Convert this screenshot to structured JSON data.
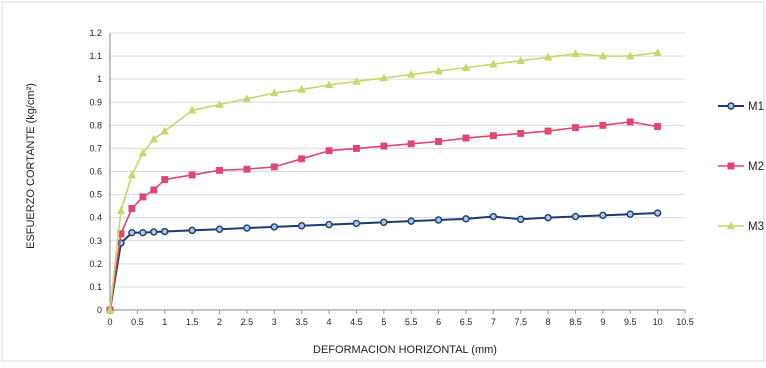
{
  "chart_data": {
    "type": "line",
    "title": "",
    "xlabel": "DEFORMACION HORIZONTAL (mm)",
    "ylabel": "ESFUERZO CORTANTE (kg/cm²)",
    "xlim": [
      0,
      10.5
    ],
    "ylim": [
      0,
      1.2
    ],
    "grid": true,
    "legend_position": "right",
    "x_ticks": [
      "0",
      "0.5",
      "1",
      "1.5",
      "2",
      "2.5",
      "3",
      "3.5",
      "4",
      "4.5",
      "5",
      "5.5",
      "6",
      "6.5",
      "7",
      "7.5",
      "8",
      "8.5",
      "9",
      "9.5",
      "10",
      "10.5"
    ],
    "y_ticks": [
      "0",
      "0.1",
      "0.2",
      "0.3",
      "0.4",
      "0.5",
      "0.6",
      "0.7",
      "0.8",
      "0.9",
      "1",
      "1.1",
      "1.2"
    ],
    "series": [
      {
        "name": "M1",
        "color": "#1f3a6e",
        "fill": "#a9c9e6",
        "marker": "circle",
        "x": [
          0,
          0.2,
          0.4,
          0.6,
          0.8,
          1.0,
          1.5,
          2.0,
          2.5,
          3.0,
          3.5,
          4.0,
          4.5,
          5.0,
          5.5,
          6.0,
          6.5,
          7.0,
          7.5,
          8.0,
          8.5,
          9.0,
          9.5,
          10.0
        ],
        "values": [
          0,
          0.29,
          0.335,
          0.335,
          0.338,
          0.34,
          0.345,
          0.35,
          0.355,
          0.36,
          0.365,
          0.37,
          0.375,
          0.38,
          0.385,
          0.39,
          0.395,
          0.405,
          0.393,
          0.4,
          0.405,
          0.41,
          0.415,
          0.42
        ]
      },
      {
        "name": "M2",
        "color": "#e0466e",
        "marker": "square",
        "x": [
          0,
          0.2,
          0.4,
          0.6,
          0.8,
          1.0,
          1.5,
          2.0,
          2.5,
          3.0,
          3.5,
          4.0,
          4.5,
          5.0,
          5.5,
          6.0,
          6.5,
          7.0,
          7.5,
          8.0,
          8.5,
          9.0,
          9.5,
          10.0
        ],
        "values": [
          0,
          0.33,
          0.44,
          0.49,
          0.52,
          0.565,
          0.585,
          0.605,
          0.61,
          0.62,
          0.655,
          0.69,
          0.7,
          0.71,
          0.72,
          0.73,
          0.745,
          0.755,
          0.765,
          0.775,
          0.79,
          0.8,
          0.815,
          0.795
        ]
      },
      {
        "name": "M3",
        "color": "#c3d96b",
        "marker": "triangle",
        "x": [
          0,
          0.2,
          0.4,
          0.6,
          0.8,
          1.0,
          1.5,
          2.0,
          2.5,
          3.0,
          3.5,
          4.0,
          4.5,
          5.0,
          5.5,
          6.0,
          6.5,
          7.0,
          7.5,
          8.0,
          8.5,
          9.0,
          9.5,
          10.0
        ],
        "values": [
          0,
          0.43,
          0.585,
          0.68,
          0.74,
          0.775,
          0.865,
          0.89,
          0.915,
          0.94,
          0.955,
          0.975,
          0.99,
          1.005,
          1.02,
          1.035,
          1.05,
          1.065,
          1.08,
          1.095,
          1.11,
          1.1,
          1.1,
          1.115
        ]
      }
    ]
  }
}
